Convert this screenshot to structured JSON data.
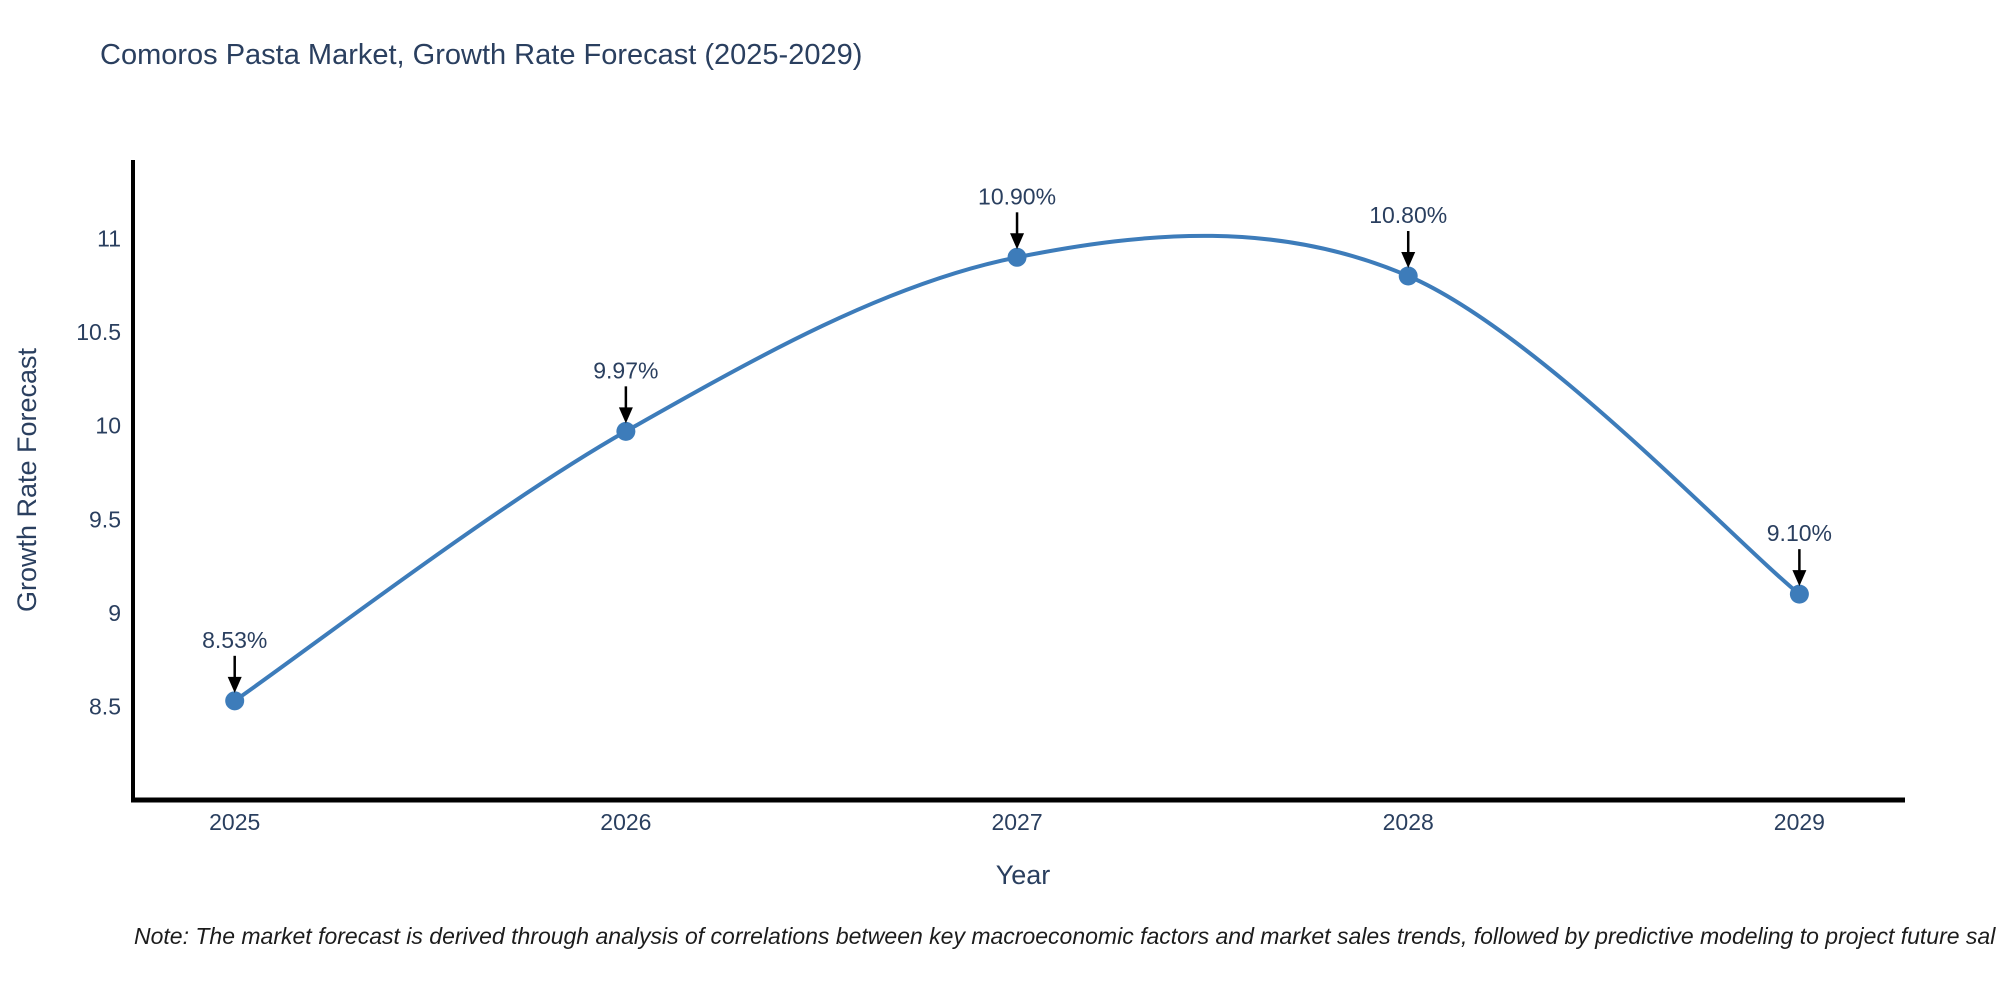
{
  "page": {
    "background": "#ffffff"
  },
  "chart_data": {
    "type": "line",
    "title": "Comoros Pasta Market, Growth Rate Forecast (2025-2029)",
    "xlabel": "Year",
    "ylabel": "Growth Rate Forecast",
    "categories": [
      2025,
      2026,
      2027,
      2028,
      2029
    ],
    "x_tick_labels": [
      "2025",
      "2026",
      "2027",
      "2028",
      "2029"
    ],
    "series": [
      {
        "name": "Growth Rate Forecast",
        "values": [
          8.53,
          9.97,
          10.9,
          10.8,
          9.1
        ],
        "point_labels": [
          "8.53%",
          "9.97%",
          "10.90%",
          "10.80%",
          "9.10%"
        ]
      }
    ],
    "y_ticks": [
      8.5,
      9,
      9.5,
      10,
      10.5,
      11
    ],
    "y_tick_labels": [
      "8.5",
      "9",
      "9.5",
      "10",
      "10.5",
      "11"
    ],
    "xlim": [
      2024.74,
      2029.27
    ],
    "ylim": [
      8.0,
      11.42
    ],
    "grid": false,
    "legend_position": "none",
    "line_shape": "spline",
    "colors": {
      "line": "#3d7cba",
      "marker": "#3d7cba",
      "axis": "#000000",
      "text": "#2a3f5f",
      "annotation_arrow": "#000000",
      "note_text": "#1c1c1c"
    },
    "note": "Note: The market forecast is derived through analysis of correlations between key macroeconomic factors and market sales trends, followed by predictive modeling to project future sal"
  }
}
